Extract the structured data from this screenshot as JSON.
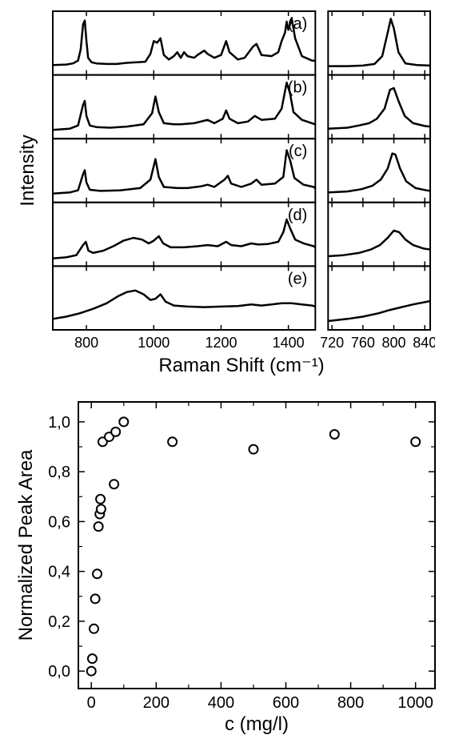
{
  "top_figure": {
    "axis_label": "Raman Shift (cm⁻¹)",
    "y_label": "Intensity",
    "axis_label_fontsize": 24,
    "y_label_fontsize": 24,
    "tick_fontsize": 18,
    "panel_label_fontsize": 20,
    "line_color": "#000000",
    "background_color": "#ffffff",
    "frame_stroke": "#000000",
    "frame_stroke_width": 2,
    "line_width": 2.5,
    "left": {
      "xlim": [
        700,
        1480
      ],
      "xticks": [
        800,
        1000,
        1200,
        1400
      ],
      "panels": [
        {
          "label": "(a)",
          "data": [
            [
              700,
              12
            ],
            [
              740,
              13
            ],
            [
              760,
              15
            ],
            [
              775,
              20
            ],
            [
              783,
              40
            ],
            [
              790,
              85
            ],
            [
              795,
              92
            ],
            [
              800,
              55
            ],
            [
              805,
              25
            ],
            [
              815,
              17
            ],
            [
              830,
              15
            ],
            [
              860,
              14
            ],
            [
              890,
              14
            ],
            [
              920,
              16
            ],
            [
              950,
              17
            ],
            [
              975,
              18
            ],
            [
              990,
              32
            ],
            [
              1000,
              55
            ],
            [
              1010,
              52
            ],
            [
              1020,
              60
            ],
            [
              1030,
              30
            ],
            [
              1045,
              22
            ],
            [
              1060,
              28
            ],
            [
              1070,
              35
            ],
            [
              1080,
              25
            ],
            [
              1090,
              35
            ],
            [
              1100,
              28
            ],
            [
              1120,
              25
            ],
            [
              1130,
              30
            ],
            [
              1150,
              38
            ],
            [
              1160,
              32
            ],
            [
              1180,
              25
            ],
            [
              1200,
              30
            ],
            [
              1215,
              55
            ],
            [
              1225,
              35
            ],
            [
              1250,
              22
            ],
            [
              1270,
              25
            ],
            [
              1295,
              45
            ],
            [
              1305,
              50
            ],
            [
              1320,
              30
            ],
            [
              1350,
              28
            ],
            [
              1370,
              35
            ],
            [
              1380,
              55
            ],
            [
              1390,
              70
            ],
            [
              1395,
              90
            ],
            [
              1400,
              75
            ],
            [
              1410,
              95
            ],
            [
              1420,
              60
            ],
            [
              1440,
              28
            ],
            [
              1470,
              20
            ],
            [
              1480,
              20
            ]
          ]
        },
        {
          "label": "(b)",
          "data": [
            [
              700,
              10
            ],
            [
              750,
              12
            ],
            [
              775,
              18
            ],
            [
              790,
              55
            ],
            [
              795,
              62
            ],
            [
              800,
              35
            ],
            [
              810,
              18
            ],
            [
              830,
              15
            ],
            [
              870,
              14
            ],
            [
              920,
              16
            ],
            [
              970,
              20
            ],
            [
              995,
              40
            ],
            [
              1005,
              70
            ],
            [
              1015,
              42
            ],
            [
              1030,
              22
            ],
            [
              1060,
              20
            ],
            [
              1080,
              20
            ],
            [
              1120,
              22
            ],
            [
              1140,
              25
            ],
            [
              1160,
              28
            ],
            [
              1180,
              22
            ],
            [
              1205,
              30
            ],
            [
              1215,
              45
            ],
            [
              1225,
              30
            ],
            [
              1250,
              22
            ],
            [
              1280,
              25
            ],
            [
              1300,
              35
            ],
            [
              1320,
              28
            ],
            [
              1360,
              30
            ],
            [
              1380,
              48
            ],
            [
              1395,
              95
            ],
            [
              1405,
              75
            ],
            [
              1415,
              42
            ],
            [
              1440,
              28
            ],
            [
              1470,
              22
            ],
            [
              1480,
              20
            ]
          ]
        },
        {
          "label": "(c)",
          "data": [
            [
              700,
              10
            ],
            [
              750,
              12
            ],
            [
              775,
              16
            ],
            [
              790,
              45
            ],
            [
              795,
              52
            ],
            [
              800,
              30
            ],
            [
              810,
              17
            ],
            [
              840,
              15
            ],
            [
              900,
              16
            ],
            [
              960,
              20
            ],
            [
              990,
              35
            ],
            [
              1005,
              72
            ],
            [
              1015,
              40
            ],
            [
              1030,
              22
            ],
            [
              1070,
              20
            ],
            [
              1100,
              20
            ],
            [
              1140,
              23
            ],
            [
              1160,
              26
            ],
            [
              1180,
              22
            ],
            [
              1210,
              35
            ],
            [
              1220,
              42
            ],
            [
              1230,
              28
            ],
            [
              1260,
              22
            ],
            [
              1290,
              28
            ],
            [
              1305,
              35
            ],
            [
              1320,
              26
            ],
            [
              1360,
              28
            ],
            [
              1385,
              40
            ],
            [
              1395,
              88
            ],
            [
              1405,
              70
            ],
            [
              1418,
              38
            ],
            [
              1445,
              26
            ],
            [
              1475,
              22
            ],
            [
              1480,
              20
            ]
          ]
        },
        {
          "label": "(d)",
          "data": [
            [
              700,
              8
            ],
            [
              740,
              10
            ],
            [
              770,
              14
            ],
            [
              790,
              32
            ],
            [
              798,
              38
            ],
            [
              806,
              22
            ],
            [
              820,
              18
            ],
            [
              850,
              22
            ],
            [
              880,
              30
            ],
            [
              910,
              40
            ],
            [
              940,
              45
            ],
            [
              965,
              42
            ],
            [
              985,
              35
            ],
            [
              1000,
              40
            ],
            [
              1015,
              48
            ],
            [
              1028,
              35
            ],
            [
              1050,
              28
            ],
            [
              1090,
              28
            ],
            [
              1130,
              30
            ],
            [
              1160,
              32
            ],
            [
              1190,
              30
            ],
            [
              1215,
              38
            ],
            [
              1230,
              32
            ],
            [
              1260,
              30
            ],
            [
              1290,
              35
            ],
            [
              1310,
              33
            ],
            [
              1340,
              34
            ],
            [
              1370,
              38
            ],
            [
              1385,
              55
            ],
            [
              1395,
              78
            ],
            [
              1405,
              62
            ],
            [
              1420,
              42
            ],
            [
              1445,
              35
            ],
            [
              1475,
              30
            ],
            [
              1480,
              28
            ]
          ]
        },
        {
          "label": "(e)",
          "data": [
            [
              700,
              14
            ],
            [
              740,
              18
            ],
            [
              780,
              24
            ],
            [
              820,
              32
            ],
            [
              860,
              42
            ],
            [
              895,
              55
            ],
            [
              920,
              62
            ],
            [
              945,
              65
            ],
            [
              970,
              58
            ],
            [
              990,
              48
            ],
            [
              1005,
              50
            ],
            [
              1020,
              58
            ],
            [
              1035,
              45
            ],
            [
              1060,
              38
            ],
            [
              1100,
              36
            ],
            [
              1150,
              35
            ],
            [
              1200,
              36
            ],
            [
              1250,
              37
            ],
            [
              1290,
              40
            ],
            [
              1320,
              38
            ],
            [
              1350,
              40
            ],
            [
              1380,
              42
            ],
            [
              1410,
              42
            ],
            [
              1440,
              40
            ],
            [
              1470,
              38
            ],
            [
              1480,
              36
            ]
          ]
        }
      ]
    },
    "right": {
      "xlim": [
        715,
        847
      ],
      "xticks": [
        720,
        760,
        800,
        840
      ],
      "panels": [
        {
          "data": [
            [
              715,
              10
            ],
            [
              740,
              10
            ],
            [
              760,
              11
            ],
            [
              775,
              14
            ],
            [
              785,
              28
            ],
            [
              792,
              70
            ],
            [
              796,
              95
            ],
            [
              800,
              78
            ],
            [
              806,
              35
            ],
            [
              815,
              15
            ],
            [
              830,
              12
            ],
            [
              847,
              11
            ]
          ]
        },
        {
          "data": [
            [
              715,
              12
            ],
            [
              740,
              14
            ],
            [
              755,
              18
            ],
            [
              768,
              22
            ],
            [
              778,
              30
            ],
            [
              788,
              48
            ],
            [
              795,
              82
            ],
            [
              800,
              85
            ],
            [
              806,
              62
            ],
            [
              814,
              35
            ],
            [
              825,
              22
            ],
            [
              840,
              17
            ],
            [
              847,
              16
            ]
          ]
        },
        {
          "data": [
            [
              715,
              12
            ],
            [
              740,
              14
            ],
            [
              758,
              18
            ],
            [
              772,
              24
            ],
            [
              783,
              35
            ],
            [
              792,
              55
            ],
            [
              798,
              82
            ],
            [
              802,
              80
            ],
            [
              808,
              55
            ],
            [
              816,
              32
            ],
            [
              828,
              20
            ],
            [
              842,
              16
            ],
            [
              847,
              15
            ]
          ]
        },
        {
          "data": [
            [
              715,
              12
            ],
            [
              735,
              14
            ],
            [
              755,
              18
            ],
            [
              770,
              24
            ],
            [
              782,
              32
            ],
            [
              792,
              45
            ],
            [
              800,
              58
            ],
            [
              807,
              55
            ],
            [
              815,
              42
            ],
            [
              825,
              32
            ],
            [
              838,
              26
            ],
            [
              847,
              24
            ]
          ]
        },
        {
          "data": [
            [
              715,
              10
            ],
            [
              740,
              14
            ],
            [
              760,
              18
            ],
            [
              780,
              24
            ],
            [
              795,
              30
            ],
            [
              810,
              35
            ],
            [
              825,
              40
            ],
            [
              840,
              44
            ],
            [
              847,
              46
            ]
          ]
        }
      ]
    }
  },
  "bottom_figure": {
    "xlabel": "c (mg/l)",
    "ylabel": "Normalized Peak Area",
    "xlabel_fontsize": 24,
    "ylabel_fontsize": 24,
    "tick_fontsize": 20,
    "xlim": [
      -40,
      1060
    ],
    "ylim": [
      -0.07,
      1.08
    ],
    "xticks": [
      0,
      200,
      400,
      600,
      800,
      1000
    ],
    "yticks": [
      0.0,
      0.2,
      0.4,
      0.6,
      0.8,
      1.0
    ],
    "ytick_labels": [
      "0,0",
      "0,2",
      "0,4",
      "0,6",
      "0,8",
      "1,0"
    ],
    "marker_radius": 5.5,
    "marker_stroke": "#000000",
    "marker_stroke_width": 2,
    "marker_fill": "#ffffff",
    "background_color": "#ffffff",
    "frame_stroke": "#000000",
    "frame_stroke_width": 2,
    "points": [
      [
        0,
        0.0
      ],
      [
        3,
        0.05
      ],
      [
        8,
        0.17
      ],
      [
        12,
        0.29
      ],
      [
        18,
        0.39
      ],
      [
        22,
        0.58
      ],
      [
        26,
        0.63
      ],
      [
        30,
        0.65
      ],
      [
        28,
        0.69
      ],
      [
        35,
        0.92
      ],
      [
        55,
        0.94
      ],
      [
        70,
        0.75
      ],
      [
        75,
        0.96
      ],
      [
        100,
        1.0
      ],
      [
        250,
        0.92
      ],
      [
        500,
        0.89
      ],
      [
        750,
        0.95
      ],
      [
        1000,
        0.92
      ]
    ]
  }
}
